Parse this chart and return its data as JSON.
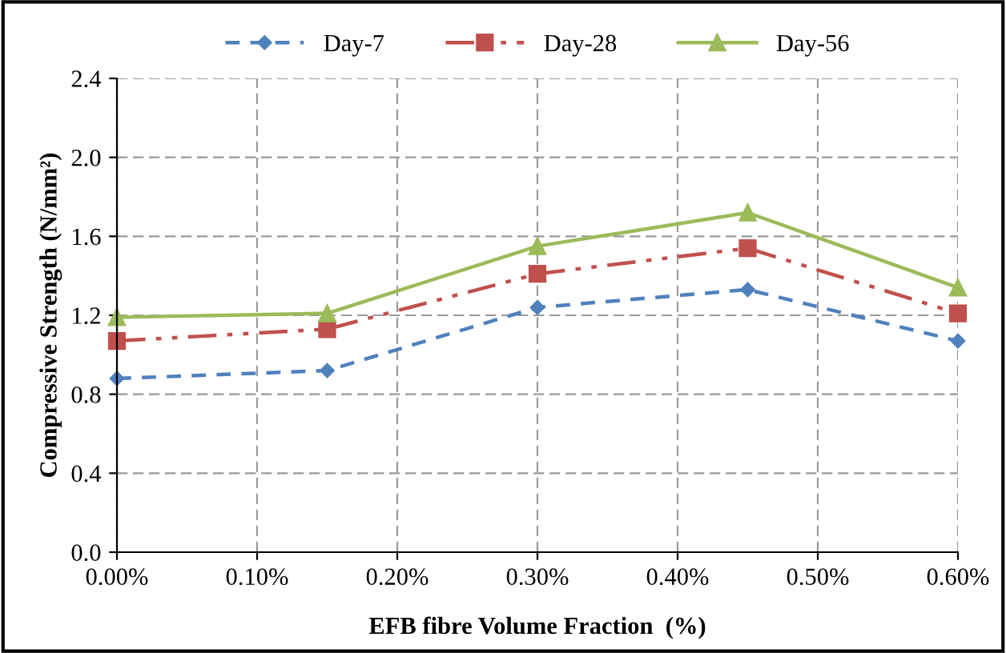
{
  "chart_data": {
    "type": "line",
    "xlabel": "EFB fibre Volume Fraction  (%)",
    "ylabel": "Compressive Strength (N/mm²)",
    "x": [
      0,
      0.15,
      0.3,
      0.45,
      0.6
    ],
    "series": [
      {
        "name": "Day-7",
        "color": "#4f81bd",
        "marker": "diamond",
        "line_style": "dashed",
        "values": [
          0.88,
          0.92,
          1.24,
          1.33,
          1.07
        ]
      },
      {
        "name": "Day-28",
        "color": "#c0504d",
        "marker": "square",
        "line_style": "dashdotdot",
        "values": [
          1.07,
          1.13,
          1.41,
          1.54,
          1.21
        ]
      },
      {
        "name": "Day-56",
        "color": "#9bbb59",
        "marker": "triangle",
        "line_style": "solid",
        "values": [
          1.19,
          1.21,
          1.55,
          1.72,
          1.34
        ]
      }
    ],
    "xlim": [
      0,
      0.6
    ],
    "xticks": [
      {
        "value": 0,
        "label": "0.00%"
      },
      {
        "value": 0.1,
        "label": "0.10%"
      },
      {
        "value": 0.2,
        "label": "0.20%"
      },
      {
        "value": 0.3,
        "label": "0.30%"
      },
      {
        "value": 0.4,
        "label": "0.40%"
      },
      {
        "value": 0.5,
        "label": "0.50%"
      },
      {
        "value": 0.6,
        "label": "0.60%"
      }
    ],
    "ylim": [
      0,
      2.4
    ],
    "yticks": [
      {
        "value": 0,
        "label": "0.0"
      },
      {
        "value": 0.4,
        "label": "0.4"
      },
      {
        "value": 0.8,
        "label": "0.8"
      },
      {
        "value": 1.2,
        "label": "1.2"
      },
      {
        "value": 1.6,
        "label": "1.6"
      },
      {
        "value": 2.0,
        "label": "2.0"
      },
      {
        "value": 2.4,
        "label": "2.4"
      }
    ],
    "grid": true,
    "legend": "top"
  }
}
